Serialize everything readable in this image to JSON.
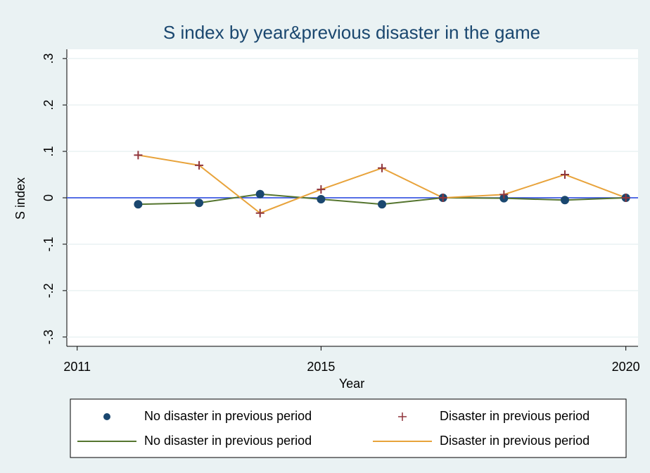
{
  "chart_data": {
    "type": "line",
    "title": "S index by year&previous disaster in the game",
    "x_label": "Year",
    "y_label": "S index",
    "x": [
      2012,
      2013,
      2014,
      2015,
      2016,
      2017,
      2018,
      2019,
      2020
    ],
    "series": [
      {
        "name": "No disaster in previous period",
        "color": "#55752f",
        "marker": "circle",
        "marker_color": "#1a476f",
        "values": [
          -0.014,
          -0.011,
          0.008,
          -0.003,
          -0.014,
          0,
          -0.001,
          -0.005,
          0
        ]
      },
      {
        "name": "Disaster in previous period",
        "color": "#e8a33b",
        "marker": "plus",
        "marker_color": "#90353b",
        "values": [
          0.092,
          0.07,
          -0.033,
          0.018,
          0.064,
          0,
          0.007,
          0.05,
          0
        ]
      }
    ],
    "xlim": [
      2010.83,
      2020.2
    ],
    "xticks": [
      2011,
      2015,
      2020
    ],
    "ylim": [
      -0.32,
      0.32
    ],
    "yticks": [
      {
        "value": -0.3,
        "label": "-.3"
      },
      {
        "value": -0.2,
        "label": "-.2"
      },
      {
        "value": -0.1,
        "label": "-.1"
      },
      0,
      {
        "value": 0.1,
        "label": ".1"
      },
      {
        "value": 0.2,
        "label": ".2"
      },
      {
        "value": 0.3,
        "label": ".3"
      }
    ],
    "grid": true,
    "hline": 0,
    "hline_color": "#2040e0",
    "legend": "bottom"
  }
}
